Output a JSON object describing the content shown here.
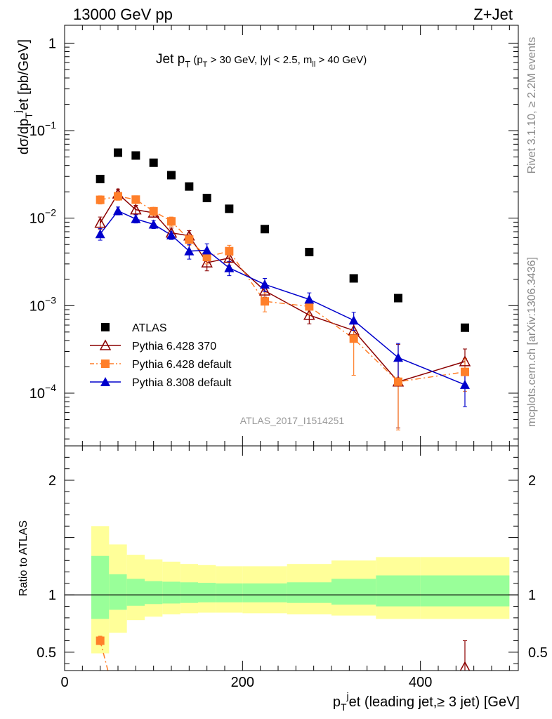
{
  "header": {
    "left": "13000 GeV pp",
    "right": "Z+Jet"
  },
  "side_labels": {
    "rivet": "Rivet 3.1.10, ≥ 2.2M events",
    "mcplots": "mcplots.cern.ch [arXiv:1306.3436]"
  },
  "chart_data": [
    {
      "type": "scatter",
      "title_main": "Jet p",
      "title_main_sub": "T",
      "title_cuts": "(p",
      "title_cuts_sub": "T",
      "title_cuts_rest1": " > 30 GeV, |y| < 2.5, m",
      "title_cuts_sub2": "ll",
      "title_cuts_rest2": " > 40 GeV)",
      "ylabel": "dσ/dp",
      "ylabel_sub": "T",
      "ylabel_sup": "j",
      "ylabel_rest": "et [pb/GeV]",
      "yscale": "log",
      "ylim": [
        2.5e-05,
        1.6
      ],
      "xlim": [
        0,
        510
      ],
      "y_ticks": [
        {
          "value": 1,
          "label": "1"
        },
        {
          "value": 0.1,
          "label": "10",
          "exp": "−1"
        },
        {
          "value": 0.01,
          "label": "10",
          "exp": "−2"
        },
        {
          "value": 0.001,
          "label": "10",
          "exp": "−3"
        },
        {
          "value": 0.0001,
          "label": "10",
          "exp": "−4"
        }
      ],
      "watermark": "ATLAS_2017_I1514251",
      "legend": {
        "placement": "lower-left",
        "entries": [
          {
            "label": "ATLAS",
            "series": "atlas"
          },
          {
            "label": "Pythia 6.428 370",
            "series": "p6_370"
          },
          {
            "label": "Pythia 6.428 default",
            "series": "p6_def"
          },
          {
            "label": "Pythia 8.308 default",
            "series": "p8_def"
          }
        ]
      },
      "series": [
        {
          "name": "ATLAS",
          "id": "atlas",
          "color": "#000000",
          "marker": "square",
          "line": "none",
          "x": [
            40,
            60,
            80,
            100,
            120,
            140,
            160,
            185,
            225,
            275,
            325,
            375,
            450
          ],
          "y": [
            0.028,
            0.056,
            0.052,
            0.043,
            0.031,
            0.023,
            0.017,
            0.0128,
            0.0075,
            0.0041,
            0.00205,
            0.00122,
            0.00056
          ]
        },
        {
          "name": "Pythia 6.428 370",
          "id": "p6_370",
          "color": "#8b0000",
          "marker": "open-triangle",
          "line": "solid",
          "x": [
            40,
            60,
            80,
            100,
            120,
            140,
            160,
            185,
            225,
            275,
            325,
            375,
            450
          ],
          "y": [
            0.0088,
            0.019,
            0.0125,
            0.0115,
            0.0068,
            0.0063,
            0.0031,
            0.0035,
            0.00148,
            0.00078,
            0.00052,
            0.000135,
            0.00023
          ],
          "err_lo": [
            0.0075,
            0.0165,
            0.011,
            0.0103,
            0.006,
            0.0055,
            0.0025,
            0.0029,
            0.00125,
            0.00062,
            0.0004,
            4e-05,
            0.00016
          ],
          "err_hi": [
            0.0103,
            0.0215,
            0.014,
            0.0128,
            0.0077,
            0.0072,
            0.0038,
            0.0041,
            0.00172,
            0.00096,
            0.00066,
            0.00036,
            0.00032
          ]
        },
        {
          "name": "Pythia 6.428 default",
          "id": "p6_def",
          "color": "#ff7f2a",
          "marker": "square",
          "line": "dashdot",
          "x": [
            40,
            60,
            80,
            100,
            120,
            140,
            160,
            185,
            225,
            275,
            325,
            375,
            450
          ],
          "y": [
            0.0162,
            0.0178,
            0.0163,
            0.012,
            0.0092,
            0.0057,
            0.0036,
            0.0042,
            0.00112,
            0.00098,
            0.00042,
            0.000135,
            0.000175
          ],
          "err_lo": [
            0.0145,
            0.016,
            0.0147,
            0.0107,
            0.0081,
            0.0049,
            0.003,
            0.0036,
            0.00085,
            0.00078,
            0.00016,
            3.8e-05,
            0.000105
          ],
          "err_hi": [
            0.018,
            0.0197,
            0.018,
            0.0133,
            0.0103,
            0.0065,
            0.0043,
            0.0049,
            0.0014,
            0.00119,
            0.00066,
            0.00025,
            0.00025
          ]
        },
        {
          "name": "Pythia 8.308 default",
          "id": "p8_def",
          "color": "#0000cc",
          "marker": "triangle",
          "line": "solid",
          "x": [
            40,
            60,
            80,
            100,
            120,
            140,
            160,
            185,
            225,
            275,
            325,
            375,
            450
          ],
          "y": [
            0.0066,
            0.0121,
            0.0098,
            0.0085,
            0.0064,
            0.0042,
            0.0043,
            0.0027,
            0.00175,
            0.00118,
            0.00068,
            0.000255,
            0.000125
          ],
          "err_lo": [
            0.0056,
            0.0109,
            0.0088,
            0.0076,
            0.0057,
            0.0034,
            0.0035,
            0.0022,
            0.00145,
            0.00096,
            0.00052,
            0.00015,
            7e-05
          ],
          "err_hi": [
            0.0076,
            0.0134,
            0.0109,
            0.0094,
            0.0071,
            0.005,
            0.0051,
            0.0032,
            0.00205,
            0.0014,
            0.00084,
            0.00037,
            0.00018
          ]
        }
      ]
    },
    {
      "type": "scatter",
      "ylabel": "Ratio to ATLAS",
      "xlabel": "p",
      "xlabel_sub": "T",
      "xlabel_sup": "j",
      "xlabel_rest": "et (leading jet,≥ 3 jet) [GeV]",
      "ylim": [
        0.34,
        2.3
      ],
      "xlim": [
        0,
        510
      ],
      "x_ticks": [
        {
          "value": 0,
          "label": "0"
        },
        {
          "value": 200,
          "label": "200"
        },
        {
          "value": 400,
          "label": "400"
        }
      ],
      "y_ticks": [
        {
          "value": 0.5,
          "label": "0.5"
        },
        {
          "value": 1,
          "label": "1"
        },
        {
          "value": 2,
          "label": "2"
        }
      ],
      "bands": {
        "bin_edges": [
          30,
          50,
          70,
          90,
          110,
          130,
          150,
          170,
          200,
          250,
          300,
          350,
          400,
          500
        ],
        "yellow_lo": [
          0.49,
          0.67,
          0.78,
          0.81,
          0.83,
          0.84,
          0.845,
          0.845,
          0.84,
          0.83,
          0.82,
          0.79,
          0.79
        ],
        "yellow_hi": [
          1.6,
          1.44,
          1.35,
          1.31,
          1.29,
          1.27,
          1.26,
          1.25,
          1.25,
          1.27,
          1.3,
          1.33,
          1.33
        ],
        "green_lo": [
          0.79,
          0.87,
          0.905,
          0.92,
          0.925,
          0.93,
          0.935,
          0.935,
          0.935,
          0.93,
          0.915,
          0.9,
          0.9
        ],
        "green_hi": [
          1.34,
          1.18,
          1.14,
          1.12,
          1.115,
          1.11,
          1.105,
          1.1,
          1.1,
          1.11,
          1.14,
          1.17,
          1.17
        ],
        "yellow_color": "#ffff99",
        "green_color": "#99ff99"
      },
      "series": [
        {
          "name": "Pythia 6.428 default",
          "id": "p6_def",
          "color": "#ff7f2a",
          "marker": "square",
          "line": "dashdot",
          "x": [
            40,
            50
          ],
          "y": [
            0.6,
            0.3
          ],
          "err_lo": [
            0.56,
            null
          ],
          "err_hi": [
            0.64,
            null
          ]
        },
        {
          "name": "Pythia 6.428 370",
          "id": "p6_370",
          "color": "#8b0000",
          "marker": "open-triangle",
          "line": "solid",
          "x": [
            450
          ],
          "y": [
            0.37
          ],
          "err_lo": [
            0.3
          ],
          "err_hi": [
            0.6
          ]
        }
      ]
    }
  ]
}
